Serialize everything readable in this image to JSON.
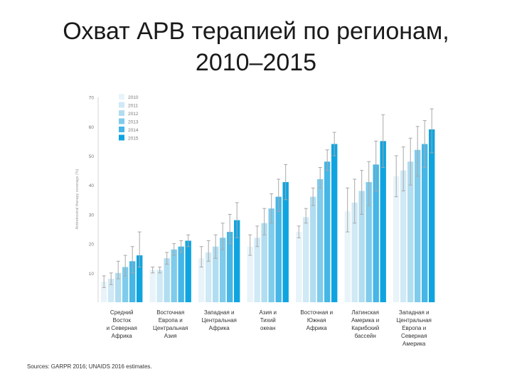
{
  "page": {
    "title_line1": "Охват АРВ терапией по регионам,",
    "title_line2": "2010–2015",
    "source": "Sources: GARPR 2016; UNAIDS 2016 estimates."
  },
  "chart_data": {
    "type": "bar",
    "title": "Охват АРВ терапией по регионам, 2010–2015",
    "ylabel": "Antiretroviral therapy coverage (%)",
    "ylim": [
      0,
      70
    ],
    "yticks": [
      10,
      20,
      30,
      40,
      50,
      60,
      70
    ],
    "grid": false,
    "legend_position": "top-left",
    "categories": [
      [
        "Средний",
        "Восток",
        "и Северная",
        "Африка"
      ],
      [
        "Восточная",
        "Европа и",
        "Центральная",
        "Азия"
      ],
      [
        "Западная и",
        "Центральная",
        "Африка"
      ],
      [
        "Азия и",
        "Тихий",
        "океан"
      ],
      [
        "Восточная и",
        "Южная",
        "Африка"
      ],
      [
        "Латинская",
        "Америка и",
        "Карибский",
        "бассейн"
      ],
      [
        "Западная и",
        "Центральная",
        "Европа и",
        "Северная",
        "Америка"
      ]
    ],
    "colors": [
      "#e8f4fa",
      "#cfe9f5",
      "#b1ddf0",
      "#7fcbeb",
      "#45b6e6",
      "#0fa4e0"
    ],
    "series": [
      {
        "name": "2010",
        "values": [
          7,
          11,
          15,
          19,
          24,
          31,
          43
        ],
        "low": [
          5,
          10,
          12,
          16,
          22,
          24,
          36
        ],
        "high": [
          9,
          12,
          19,
          23,
          26,
          39,
          50
        ]
      },
      {
        "name": "2011",
        "values": [
          8,
          11,
          17,
          22,
          29,
          34,
          45
        ],
        "low": [
          6,
          10,
          14,
          19,
          27,
          27,
          38
        ],
        "high": [
          10,
          12,
          21,
          26,
          32,
          42,
          53
        ]
      },
      {
        "name": "2012",
        "values": [
          10,
          15,
          19,
          27,
          36,
          38,
          48
        ],
        "low": [
          8,
          13,
          15,
          23,
          33,
          30,
          40
        ],
        "high": [
          14,
          17,
          23,
          32,
          39,
          45,
          56
        ]
      },
      {
        "name": "2013",
        "values": [
          12,
          18,
          22,
          32,
          42,
          41,
          52
        ],
        "low": [
          9,
          16,
          18,
          27,
          39,
          33,
          43
        ],
        "high": [
          16,
          20,
          27,
          37,
          46,
          48,
          60
        ]
      },
      {
        "name": "2014",
        "values": [
          14,
          19,
          24,
          36,
          48,
          47,
          54
        ],
        "low": [
          10,
          17,
          20,
          31,
          45,
          38,
          46
        ],
        "high": [
          19,
          21,
          30,
          42,
          52,
          55,
          62
        ]
      },
      {
        "name": "2015",
        "values": [
          16,
          21,
          28,
          41,
          54,
          55,
          59
        ],
        "low": [
          12,
          19,
          22,
          35,
          50,
          46,
          51
        ],
        "high": [
          24,
          23,
          34,
          47,
          58,
          64,
          66
        ]
      }
    ]
  }
}
